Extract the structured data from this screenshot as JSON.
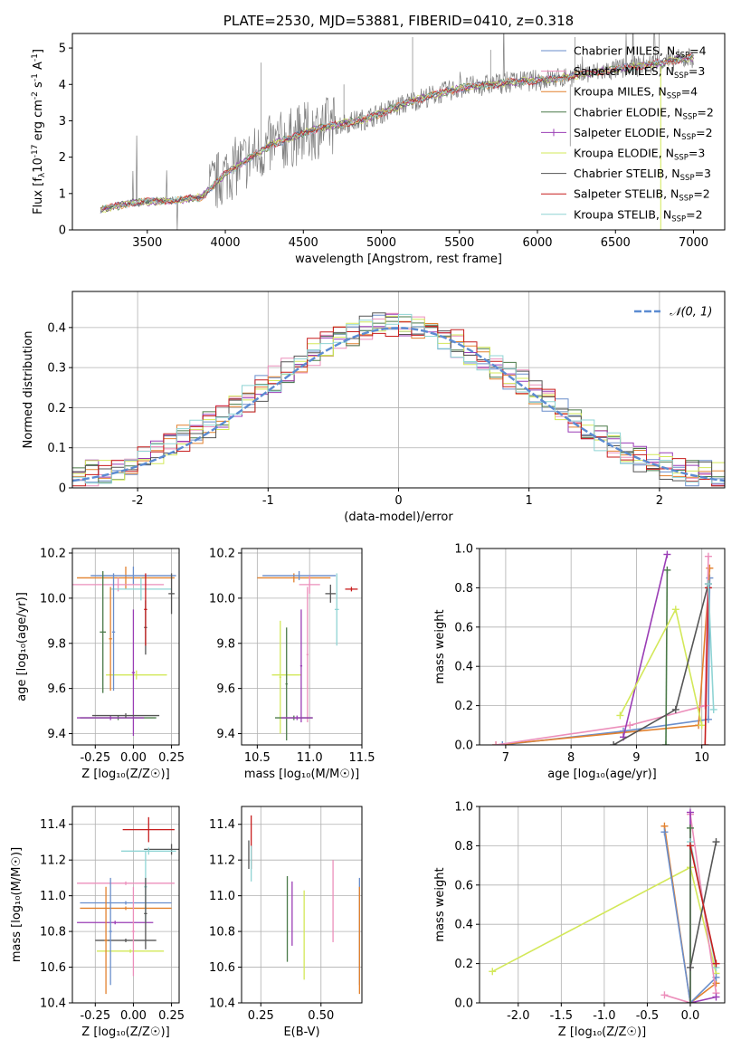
{
  "colors": {
    "chabrier_miles": "#6a8ecb",
    "salpeter_miles": "#ec8fbb",
    "kroupa_miles": "#e2812e",
    "chabrier_elodie": "#4a7a48",
    "salpeter_elodie": "#9a3db5",
    "kroupa_elodie": "#d3e85a",
    "chabrier_stelib": "#555555",
    "salpeter_stelib": "#c71d1d",
    "kroupa_stelib": "#8fd4d4",
    "data_spectrum": "#808080",
    "normal_curve": "#5b8bd1"
  },
  "chart_data": [
    {
      "type": "line",
      "title": "PLATE=2530, MJD=53881, FIBERID=0410, z=0.318",
      "xlabel": "wavelength [Angstrom, rest frame]",
      "ylabel_parts": [
        "Flux [f",
        "λ",
        "10",
        "-17",
        " erg cm",
        "-2",
        " s",
        "-1",
        " A",
        "-1",
        "]"
      ],
      "xticks": [
        3500,
        4000,
        4500,
        5000,
        5500,
        6000,
        6500,
        7000
      ],
      "yticks": [
        0,
        1,
        2,
        3,
        4,
        5
      ],
      "xlim": [
        3020,
        7200
      ],
      "ylim": [
        0,
        5.4
      ],
      "continuum_knots": [
        [
          3200,
          0.55
        ],
        [
          3400,
          0.75
        ],
        [
          3700,
          0.82
        ],
        [
          3850,
          0.9
        ],
        [
          4000,
          1.55
        ],
        [
          4300,
          2.35
        ],
        [
          4600,
          2.8
        ],
        [
          4900,
          3.05
        ],
        [
          5200,
          3.55
        ],
        [
          5500,
          3.9
        ],
        [
          5800,
          4.05
        ],
        [
          6100,
          4.15
        ],
        [
          6400,
          4.35
        ],
        [
          6800,
          4.6
        ],
        [
          7000,
          4.75
        ]
      ],
      "legend_position": "upper right",
      "series": [
        {
          "name": "Chabrier MILES",
          "nssp": "4",
          "color_key": "chabrier_miles",
          "marker": "none"
        },
        {
          "name": "Salpeter MILES",
          "nssp": "3",
          "color_key": "salpeter_miles",
          "marker": "none"
        },
        {
          "name": "Kroupa MILES",
          "nssp": "4",
          "color_key": "kroupa_miles",
          "marker": "none"
        },
        {
          "name": "Chabrier ELODIE",
          "nssp": "2",
          "color_key": "chabrier_elodie",
          "marker": "none"
        },
        {
          "name": "Salpeter ELODIE",
          "nssp": "2",
          "color_key": "salpeter_elodie",
          "marker": "+"
        },
        {
          "name": "Kroupa ELODIE",
          "nssp": "3",
          "color_key": "kroupa_elodie",
          "marker": "none"
        },
        {
          "name": "Chabrier STELIB",
          "nssp": "3",
          "color_key": "chabrier_stelib",
          "marker": "none"
        },
        {
          "name": "Salpeter STELIB",
          "nssp": "2",
          "color_key": "salpeter_stelib",
          "marker": "none"
        },
        {
          "name": "Kroupa STELIB",
          "nssp": "2",
          "color_key": "kroupa_stelib",
          "marker": "none"
        }
      ]
    },
    {
      "type": "line",
      "xlabel": "(data-model)/error",
      "ylabel": "Normed distribution",
      "xticks": [
        -2,
        -1,
        0,
        1,
        2
      ],
      "yticks": [
        0.0,
        0.1,
        0.2,
        0.3,
        0.4
      ],
      "xlim": [
        -2.5,
        2.5
      ],
      "ylim": [
        0,
        0.49
      ],
      "grid": true,
      "legend": "𝒩(0, 1)",
      "legend_position": "upper right",
      "histogram_bin_width": 0.1,
      "histogram_profile": [
        [
          -2.5,
          0.03
        ],
        [
          -2.3,
          0.04
        ],
        [
          -2.0,
          0.06
        ],
        [
          -1.8,
          0.1
        ],
        [
          -1.6,
          0.13
        ],
        [
          -1.4,
          0.17
        ],
        [
          -1.2,
          0.21
        ],
        [
          -1.0,
          0.26
        ],
        [
          -0.8,
          0.31
        ],
        [
          -0.6,
          0.35
        ],
        [
          -0.4,
          0.38
        ],
        [
          -0.2,
          0.41
        ],
        [
          0.0,
          0.41
        ],
        [
          0.2,
          0.39
        ],
        [
          0.4,
          0.37
        ],
        [
          0.6,
          0.33
        ],
        [
          0.8,
          0.29
        ],
        [
          1.0,
          0.25
        ],
        [
          1.2,
          0.2
        ],
        [
          1.4,
          0.16
        ],
        [
          1.6,
          0.11
        ],
        [
          1.8,
          0.08
        ],
        [
          2.0,
          0.06
        ],
        [
          2.2,
          0.04
        ],
        [
          2.5,
          0.03
        ]
      ]
    },
    {
      "type": "scatter",
      "xlabel": "Z [log₁₀(Z/Z☉)]",
      "ylabel": "age  [log₁₀(age/yr)]",
      "xticks": [
        "-0.25",
        "0.00",
        "0.25"
      ],
      "yticks": [
        "9.4",
        "9.6",
        "9.8",
        "10.0",
        "10.2"
      ],
      "xlim": [
        -0.4,
        0.3
      ],
      "ylim": [
        9.35,
        10.22
      ],
      "grid": true,
      "errorbars": [
        {
          "c": "kroupa_miles",
          "x": -0.05,
          "y": 10.09,
          "xerr": 0.32,
          "yerr": 0.05
        },
        {
          "c": "chabrier_miles",
          "x": 0.0,
          "y": 10.1,
          "xerr": 0.28,
          "yerr": 0.04
        },
        {
          "c": "salpeter_miles",
          "x": -0.1,
          "y": 10.06,
          "xerr": 0.3,
          "yerr": 0.03
        },
        {
          "c": "kroupa_stelib",
          "x": 0.05,
          "y": 10.04,
          "xerr": 0.2,
          "yerr": 0.05
        },
        {
          "c": "chabrier_stelib",
          "x": 0.25,
          "y": 10.02,
          "xerr": 0.02,
          "yerr": 0.09
        },
        {
          "c": "chabrier_stelib",
          "x": 0.08,
          "y": 9.87,
          "xerr": 0.01,
          "yerr": 0.12
        },
        {
          "c": "salpeter_stelib",
          "x": 0.08,
          "y": 9.95,
          "xerr": 0.01,
          "yerr": 0.16
        },
        {
          "c": "kroupa_elodie",
          "x": 0.02,
          "y": 9.66,
          "xerr": 0.2,
          "yerr": 0.02
        },
        {
          "c": "chabrier_elodie",
          "x": -0.2,
          "y": 9.85,
          "xerr": 0.02,
          "yerr": 0.27
        },
        {
          "c": "kroupa_miles",
          "x": -0.15,
          "y": 9.82,
          "xerr": 0.01,
          "yerr": 0.23
        },
        {
          "c": "chabrier_miles",
          "x": -0.13,
          "y": 9.85,
          "xerr": 0.01,
          "yerr": 0.26
        },
        {
          "c": "salpeter_elodie",
          "x": 0.0,
          "y": 9.67,
          "xerr": 0.01,
          "yerr": 0.28
        },
        {
          "c": "chabrier_elodie",
          "x": -0.1,
          "y": 9.47,
          "xerr": 0.25,
          "yerr": 0.01
        },
        {
          "c": "salpeter_elodie",
          "x": -0.15,
          "y": 9.47,
          "xerr": 0.22,
          "yerr": 0.01
        },
        {
          "c": "chabrier_stelib",
          "x": -0.05,
          "y": 9.48,
          "xerr": 0.22,
          "yerr": 0.01
        }
      ]
    },
    {
      "type": "scatter",
      "xlabel": "mass [log₁₀(M/M☉)]",
      "xticks": [
        "10.5",
        "11.0",
        "11.5"
      ],
      "yticks": [
        "9.4",
        "9.6",
        "9.8",
        "10.0",
        "10.2"
      ],
      "xlim": [
        10.35,
        11.5
      ],
      "ylim": [
        9.35,
        10.22
      ],
      "grid": true,
      "errorbars": [
        {
          "c": "kroupa_miles",
          "x": 10.85,
          "y": 10.09,
          "xerr": 0.35,
          "yerr": 0.02
        },
        {
          "c": "chabrier_miles",
          "x": 10.9,
          "y": 10.1,
          "xerr": 0.35,
          "yerr": 0.02
        },
        {
          "c": "salpeter_miles",
          "x": 11.0,
          "y": 10.06,
          "xerr": 0.1,
          "yerr": 0.04
        },
        {
          "c": "chabrier_stelib",
          "x": 11.2,
          "y": 10.02,
          "xerr": 0.05,
          "yerr": 0.04
        },
        {
          "c": "kroupa_stelib",
          "x": 11.26,
          "y": 9.95,
          "xerr": 0.02,
          "yerr": 0.16
        },
        {
          "c": "salpeter_stelib",
          "x": 11.4,
          "y": 10.04,
          "xerr": 0.06,
          "yerr": 0.01
        },
        {
          "c": "kroupa_elodie",
          "x": 10.78,
          "y": 9.66,
          "xerr": 0.14,
          "yerr": 0.02
        },
        {
          "c": "kroupa_elodie",
          "x": 10.72,
          "y": 9.65,
          "xerr": 0.01,
          "yerr": 0.25
        },
        {
          "c": "chabrier_elodie",
          "x": 10.78,
          "y": 9.62,
          "xerr": 0.01,
          "yerr": 0.25
        },
        {
          "c": "salpeter_elodie",
          "x": 10.92,
          "y": 9.7,
          "xerr": 0.01,
          "yerr": 0.25
        },
        {
          "c": "salpeter_miles",
          "x": 10.98,
          "y": 9.75,
          "xerr": 0.01,
          "yerr": 0.3
        },
        {
          "c": "chabrier_elodie",
          "x": 10.85,
          "y": 9.47,
          "xerr": 0.18,
          "yerr": 0.01
        },
        {
          "c": "salpeter_elodie",
          "x": 10.88,
          "y": 9.47,
          "xerr": 0.15,
          "yerr": 0.01
        }
      ]
    },
    {
      "type": "line",
      "xlabel": "age  [log₁₀(age/yr)]",
      "ylabel": "mass weight",
      "xticks": [
        "7",
        "8",
        "9",
        "10"
      ],
      "yticks": [
        "0.0",
        "0.2",
        "0.4",
        "0.6",
        "0.8",
        "1.0"
      ],
      "xlim": [
        6.6,
        10.35
      ],
      "ylim": [
        0,
        1.0
      ],
      "grid": true,
      "series": [
        {
          "c": "chabrier_miles",
          "points": [
            [
              6.95,
              0.0
            ],
            [
              8.8,
              0.07
            ],
            [
              10.1,
              0.13
            ],
            [
              10.12,
              0.85
            ]
          ]
        },
        {
          "c": "kroupa_miles",
          "points": [
            [
              6.85,
              0.0
            ],
            [
              9.95,
              0.1
            ],
            [
              10.12,
              0.9
            ]
          ]
        },
        {
          "c": "salpeter_miles",
          "points": [
            [
              6.85,
              0.0
            ],
            [
              8.9,
              0.1
            ],
            [
              10.05,
              0.2
            ],
            [
              10.1,
              0.96
            ]
          ]
        },
        {
          "c": "chabrier_elodie",
          "points": [
            [
              9.45,
              0.0
            ],
            [
              9.47,
              0.89
            ]
          ]
        },
        {
          "c": "salpeter_elodie",
          "points": [
            [
              8.8,
              0.04
            ],
            [
              9.47,
              0.97
            ]
          ]
        },
        {
          "c": "kroupa_elodie",
          "points": [
            [
              8.75,
              0.15
            ],
            [
              9.6,
              0.69
            ],
            [
              10.0,
              0.1
            ]
          ]
        },
        {
          "c": "chabrier_stelib",
          "points": [
            [
              8.65,
              0.0
            ],
            [
              9.6,
              0.18
            ],
            [
              10.1,
              0.82
            ]
          ]
        },
        {
          "c": "salpeter_stelib",
          "points": [
            [
              10.05,
              0.0
            ],
            [
              10.1,
              0.8
            ]
          ]
        },
        {
          "c": "kroupa_stelib",
          "points": [
            [
              10.1,
              0.82
            ],
            [
              10.18,
              0.18
            ]
          ]
        }
      ]
    },
    {
      "type": "scatter",
      "xlabel": "Z [log₁₀(Z/Z☉)]",
      "ylabel": "mass [log₁₀(M/M☉)]",
      "xticks": [
        "-0.25",
        "0.00",
        "0.25"
      ],
      "yticks": [
        "10.4",
        "10.6",
        "10.8",
        "11.0",
        "11.2",
        "11.4"
      ],
      "xlim": [
        -0.4,
        0.3
      ],
      "ylim": [
        10.4,
        11.5
      ],
      "grid": true,
      "errorbars": [
        {
          "c": "salpeter_stelib",
          "x": 0.1,
          "y": 11.37,
          "xerr": 0.17,
          "yerr": 0.07
        },
        {
          "c": "chabrier_stelib",
          "x": 0.25,
          "y": 11.26,
          "xerr": 0.18,
          "yerr": 0.03
        },
        {
          "c": "kroupa_stelib",
          "x": 0.1,
          "y": 11.25,
          "xerr": 0.18,
          "yerr": 0.02
        },
        {
          "c": "salpeter_miles",
          "x": -0.05,
          "y": 11.07,
          "xerr": 0.32,
          "yerr": 0.01
        },
        {
          "c": "chabrier_miles",
          "x": -0.05,
          "y": 10.96,
          "xerr": 0.3,
          "yerr": 0.01
        },
        {
          "c": "kroupa_miles",
          "x": -0.05,
          "y": 10.93,
          "xerr": 0.3,
          "yerr": 0.01
        },
        {
          "c": "salpeter_elodie",
          "x": -0.12,
          "y": 10.85,
          "xerr": 0.25,
          "yerr": 0.01
        },
        {
          "c": "chabrier_stelib",
          "x": -0.05,
          "y": 10.75,
          "xerr": 0.2,
          "yerr": 0.01
        },
        {
          "c": "kroupa_elodie",
          "x": -0.02,
          "y": 10.69,
          "xerr": 0.22,
          "yerr": 0.01
        },
        {
          "c": "chabrier_miles",
          "x": -0.15,
          "y": 10.8,
          "xerr": 0.01,
          "yerr": 0.3
        },
        {
          "c": "kroupa_miles",
          "x": -0.18,
          "y": 10.75,
          "xerr": 0.01,
          "yerr": 0.3
        },
        {
          "c": "salpeter_miles",
          "x": 0.0,
          "y": 10.8,
          "xerr": 0.01,
          "yerr": 0.25
        },
        {
          "c": "kroupa_stelib",
          "x": 0.08,
          "y": 11.05,
          "xerr": 0.01,
          "yerr": 0.2
        },
        {
          "c": "chabrier_stelib",
          "x": 0.08,
          "y": 10.9,
          "xerr": 0.01,
          "yerr": 0.2
        }
      ]
    },
    {
      "type": "scatter",
      "xlabel": "E(B-V)",
      "xticks": [
        "0.25",
        "0.50"
      ],
      "yticks": [
        "10.4",
        "10.6",
        "10.8",
        "11.0",
        "11.2",
        "11.4"
      ],
      "xlim": [
        0.17,
        0.67
      ],
      "ylim": [
        10.4,
        11.5
      ],
      "grid": true,
      "errorbars": [
        {
          "c": "chabrier_stelib",
          "x": 0.2,
          "y": 11.23,
          "xerr": 0,
          "yerr": 0.08
        },
        {
          "c": "salpeter_stelib",
          "x": 0.21,
          "y": 11.3,
          "xerr": 0,
          "yerr": 0.15
        },
        {
          "c": "kroupa_stelib",
          "x": 0.21,
          "y": 11.18,
          "xerr": 0,
          "yerr": 0.1
        },
        {
          "c": "chabrier_elodie",
          "x": 0.36,
          "y": 10.87,
          "xerr": 0,
          "yerr": 0.24
        },
        {
          "c": "salpeter_elodie",
          "x": 0.38,
          "y": 10.9,
          "xerr": 0,
          "yerr": 0.18
        },
        {
          "c": "kroupa_elodie",
          "x": 0.43,
          "y": 10.78,
          "xerr": 0,
          "yerr": 0.25
        },
        {
          "c": "salpeter_miles",
          "x": 0.55,
          "y": 10.97,
          "xerr": 0,
          "yerr": 0.23
        },
        {
          "c": "chabrier_miles",
          "x": 0.66,
          "y": 10.8,
          "xerr": 0,
          "yerr": 0.3
        },
        {
          "c": "kroupa_miles",
          "x": 0.66,
          "y": 10.75,
          "xerr": 0,
          "yerr": 0.3
        }
      ]
    },
    {
      "type": "line",
      "xlabel": "Z [log₁₀(Z/Z☉)]",
      "ylabel": "mass weight",
      "xticks": [
        "-2.0",
        "-1.5",
        "-1.0",
        "-0.5",
        "0.0"
      ],
      "yticks": [
        "0.0",
        "0.2",
        "0.4",
        "0.6",
        "0.8",
        "1.0"
      ],
      "xlim": [
        -2.45,
        0.4
      ],
      "ylim": [
        0,
        1.0
      ],
      "grid": true,
      "series": [
        {
          "c": "kroupa_elodie",
          "points": [
            [
              -2.3,
              0.16
            ],
            [
              0.0,
              0.69
            ],
            [
              0.3,
              0.15
            ]
          ]
        },
        {
          "c": "kroupa_miles",
          "points": [
            [
              -0.3,
              0.9
            ],
            [
              0.0,
              0.0
            ],
            [
              0.3,
              0.1
            ]
          ]
        },
        {
          "c": "chabrier_miles",
          "points": [
            [
              -0.3,
              0.87
            ],
            [
              0.0,
              0.0
            ],
            [
              0.3,
              0.13
            ]
          ]
        },
        {
          "c": "salpeter_miles",
          "points": [
            [
              -0.3,
              0.04
            ],
            [
              0.0,
              0.0
            ],
            [
              0.0,
              0.96
            ],
            [
              0.3,
              0.05
            ]
          ]
        },
        {
          "c": "salpeter_elodie",
          "points": [
            [
              0.0,
              0.97
            ],
            [
              0.0,
              0.0
            ],
            [
              0.3,
              0.03
            ]
          ]
        },
        {
          "c": "chabrier_elodie",
          "points": [
            [
              0.0,
              0.89
            ],
            [
              0.0,
              0.0
            ]
          ]
        },
        {
          "c": "chabrier_stelib",
          "points": [
            [
              0.0,
              0.18
            ],
            [
              0.3,
              0.82
            ]
          ]
        },
        {
          "c": "kroupa_stelib",
          "points": [
            [
              0.0,
              0.82
            ],
            [
              0.3,
              0.18
            ]
          ]
        },
        {
          "c": "salpeter_stelib",
          "points": [
            [
              0.0,
              0.8
            ],
            [
              0.3,
              0.2
            ]
          ]
        }
      ]
    }
  ]
}
